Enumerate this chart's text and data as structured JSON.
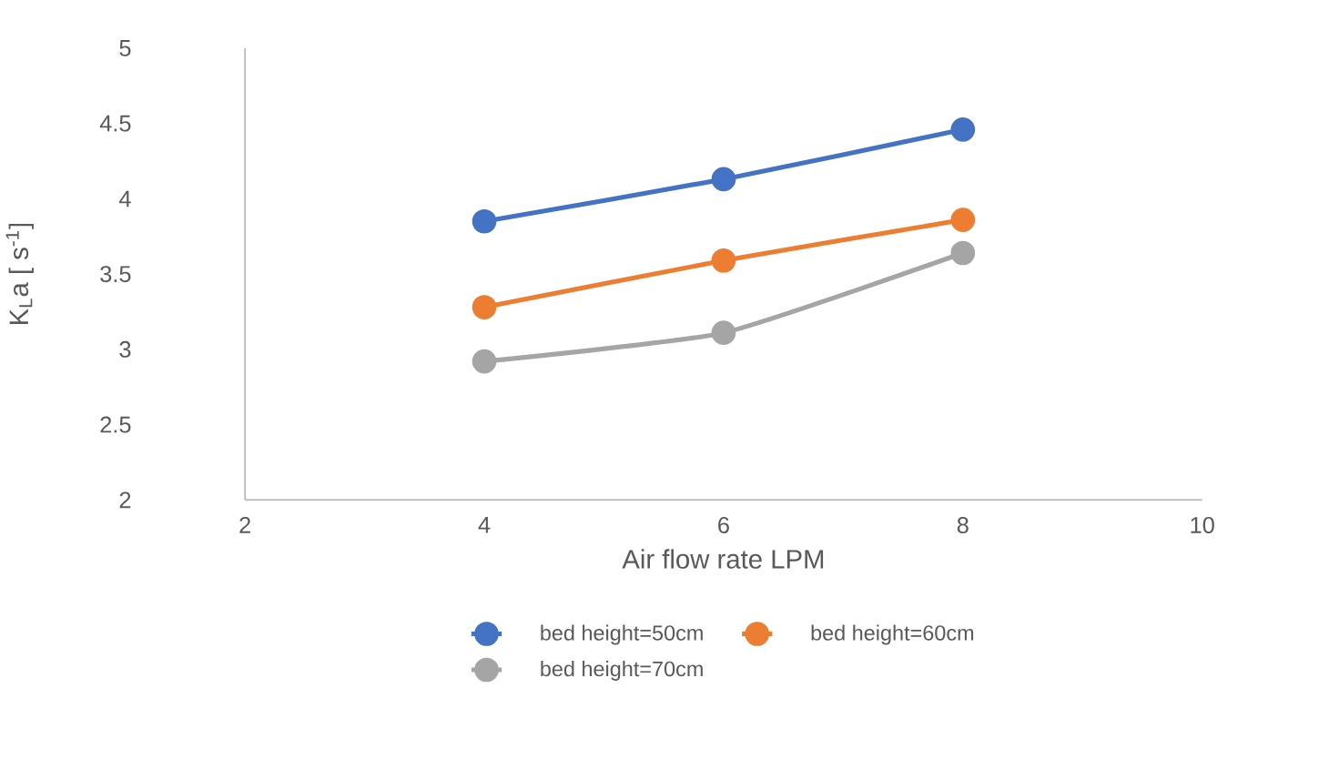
{
  "chart_data": {
    "type": "line",
    "xlabel": "Air flow rate LPM",
    "ylabel": "K$_{L}$a [ s$^{-1}$]",
    "x": [
      4,
      6,
      8
    ],
    "series": [
      {
        "name": "bed height=50cm",
        "color": "#4472c4",
        "values": [
          3.85,
          4.13,
          4.46
        ]
      },
      {
        "name": "bed height=60cm",
        "color": "#ed7d31",
        "values": [
          3.28,
          3.59,
          3.86
        ]
      },
      {
        "name": "bed height=70cm",
        "color": "#a5a5a5",
        "values": [
          2.92,
          3.11,
          3.64
        ]
      }
    ],
    "xlim": [
      2,
      10
    ],
    "xticks": [
      2,
      4,
      6,
      8,
      10
    ],
    "ylim": [
      2,
      5
    ],
    "yticks": [
      2,
      2.5,
      3,
      3.5,
      4,
      4.5,
      5
    ],
    "legend": "bottom",
    "marker": "circle",
    "line_style": "solid",
    "grid": false
  }
}
